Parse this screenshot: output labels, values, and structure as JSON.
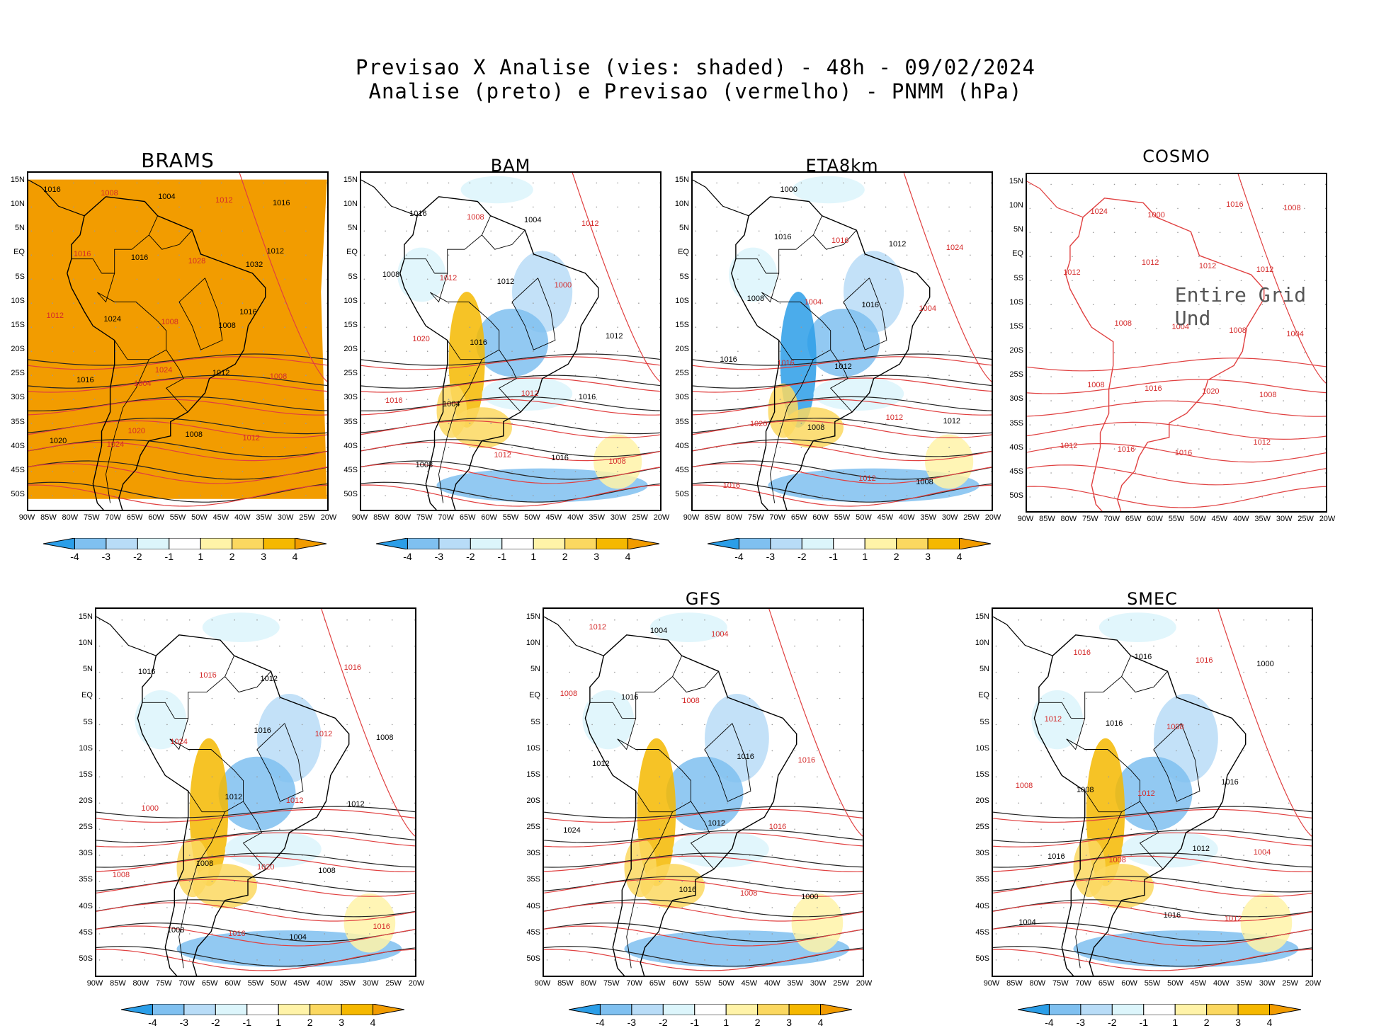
{
  "header": {
    "line1": "Previsao X Analise (vies: shaded) - 48h - 09/02/2024",
    "line2": "Analise (preto) e Previsao (vermelho) - PNMM (hPa)"
  },
  "axes": {
    "lat_labels": [
      "15N",
      "10N",
      "5N",
      "EQ",
      "5S",
      "10S",
      "15S",
      "20S",
      "25S",
      "30S",
      "35S",
      "40S",
      "45S",
      "50S"
    ],
    "lon_labels": [
      "90W",
      "85W",
      "80W",
      "75W",
      "70W",
      "65W",
      "60W",
      "55W",
      "50W",
      "45W",
      "40W",
      "35W",
      "30W",
      "25W",
      "20W"
    ]
  },
  "colorbar": {
    "labels": [
      "-4",
      "-3",
      "-2",
      "-1",
      "1",
      "2",
      "3",
      "4"
    ],
    "colors": [
      "#2b9ee8",
      "#7fc0f0",
      "#b8dcf7",
      "#dcf5fb",
      "#ffffff",
      "#fff3a8",
      "#fbd860",
      "#f5b800",
      "#f29c00"
    ]
  },
  "panels": [
    {
      "name": "BRAMS",
      "has_colorbar": true,
      "undefined_text": "",
      "labels": [
        "1016",
        "1024",
        "1012",
        "1020",
        "1016",
        "1008",
        "1012",
        "1016",
        "1008",
        "1012",
        "1004",
        "1008",
        "1016",
        "1012",
        "1024",
        "1012",
        "1016",
        "1028",
        "1020",
        "1008",
        "1016",
        "1004",
        "1032",
        "1024",
        "1008"
      ]
    },
    {
      "name": "BAM",
      "has_colorbar": true,
      "undefined_text": "",
      "labels": [
        "1016",
        "1012",
        "1008",
        "1012",
        "1012",
        "1008",
        "1016",
        "1012",
        "1016",
        "1020",
        "1004",
        "1016",
        "1012",
        "1008",
        "1016",
        "1012",
        "1004",
        "1000",
        "1008"
      ]
    },
    {
      "name": "ETA8km",
      "has_colorbar": true,
      "undefined_text": "",
      "labels": [
        "1016",
        "1012",
        "1008",
        "1012",
        "1016",
        "1016",
        "1012",
        "1004",
        "1008",
        "1016",
        "1012",
        "1020",
        "1016",
        "1016",
        "1012",
        "1024",
        "1008",
        "1004",
        "1000"
      ]
    },
    {
      "name": "COSMO",
      "has_colorbar": false,
      "undefined_text": "Entire Grid Und",
      "labels": [
        "1012",
        "1012",
        "1008",
        "1016",
        "1008",
        "1012",
        "1012",
        "1004",
        "1008",
        "1016",
        "1012",
        "1016",
        "1008",
        "1024",
        "1020",
        "1012",
        "1016",
        "1004",
        "1000",
        "1008"
      ]
    },
    {
      "name": "",
      "has_colorbar": true,
      "undefined_text": "",
      "labels": [
        "1016",
        "1016",
        "1012",
        "1016",
        "1008",
        "1012",
        "1008",
        "1012",
        "1016",
        "1020",
        "1008",
        "1016",
        "1012",
        "1016",
        "1008",
        "1024",
        "1004",
        "1000",
        "1012",
        "1008"
      ]
    },
    {
      "name": "GFS",
      "has_colorbar": true,
      "undefined_text": "",
      "labels": [
        "1016",
        "1012",
        "1012",
        "1008",
        "1016",
        "1016",
        "1004",
        "1016",
        "1016",
        "1008",
        "1012",
        "1004",
        "1024",
        "1008",
        "1000"
      ]
    },
    {
      "name": "SMEC",
      "has_colorbar": true,
      "undefined_text": "",
      "labels": [
        "1016",
        "1016",
        "1012",
        "1012",
        "1016",
        "1008",
        "1016",
        "1004",
        "1016",
        "1012",
        "1008",
        "1016",
        "1016",
        "1008",
        "1004",
        "1012",
        "1000",
        "1008"
      ]
    }
  ]
}
